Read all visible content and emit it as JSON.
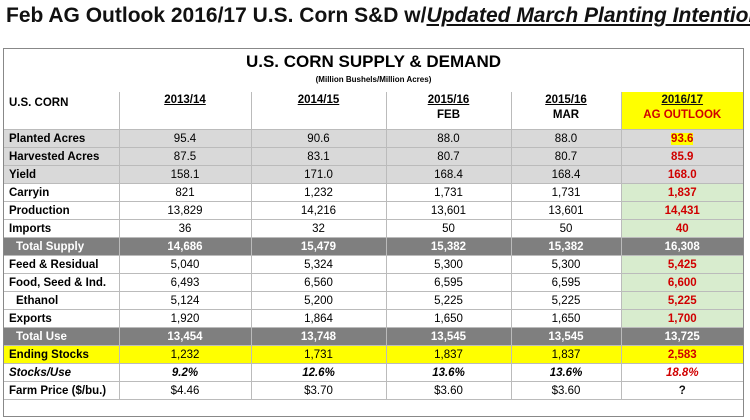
{
  "header": {
    "title": "Feb AG Outlook 2016/17 U.S. Corn S&D w/",
    "emphasis": "Updated March Planting Intentions"
  },
  "table": {
    "title": "U.S. CORN SUPPLY & DEMAND",
    "subtitle": "(Million Bushels/Million Acres)",
    "columns": [
      [
        "U.S. CORN"
      ],
      [
        "2013/14"
      ],
      [
        "2014/15"
      ],
      [
        "2015/16",
        "FEB"
      ],
      [
        "2015/16",
        "MAR"
      ],
      [
        "2016/17",
        "AG OUTLOOK"
      ]
    ],
    "rows": [
      [
        "Planted Acres",
        "95.4",
        "90.6",
        "88.0",
        "88.0",
        "93.6"
      ],
      [
        "Harvested Acres",
        "87.5",
        "83.1",
        "80.7",
        "80.7",
        "85.9"
      ],
      [
        "Yield",
        "158.1",
        "171.0",
        "168.4",
        "168.4",
        "168.0"
      ],
      [
        "Carryin",
        "821",
        "1,232",
        "1,731",
        "1,731",
        "1,837"
      ],
      [
        "Production",
        "13,829",
        "14,216",
        "13,601",
        "13,601",
        "14,431"
      ],
      [
        "Imports",
        "36",
        "32",
        "50",
        "50",
        "40"
      ],
      [
        "Total Supply",
        "14,686",
        "15,479",
        "15,382",
        "15,382",
        "16,308"
      ],
      [
        "Feed & Residual",
        "5,040",
        "5,324",
        "5,300",
        "5,300",
        "5,425"
      ],
      [
        "Food, Seed & Ind.",
        "6,493",
        "6,560",
        "6,595",
        "6,595",
        "6,600"
      ],
      [
        "Ethanol",
        "5,124",
        "5,200",
        "5,225",
        "5,225",
        "5,225"
      ],
      [
        "Exports",
        "1,920",
        "1,864",
        "1,650",
        "1,650",
        "1,700"
      ],
      [
        "Total Use",
        "13,454",
        "13,748",
        "13,545",
        "13,545",
        "13,725"
      ],
      [
        "Ending Stocks",
        "1,232",
        "1,731",
        "1,837",
        "1,837",
        "2,583"
      ],
      [
        "Stocks/Use",
        "9.2%",
        "12.6%",
        "13.6%",
        "13.6%",
        "18.8%"
      ],
      [
        "Farm Price ($/bu.)",
        "$4.46",
        "$3.70",
        "$3.60",
        "$3.60",
        "?"
      ]
    ]
  }
}
